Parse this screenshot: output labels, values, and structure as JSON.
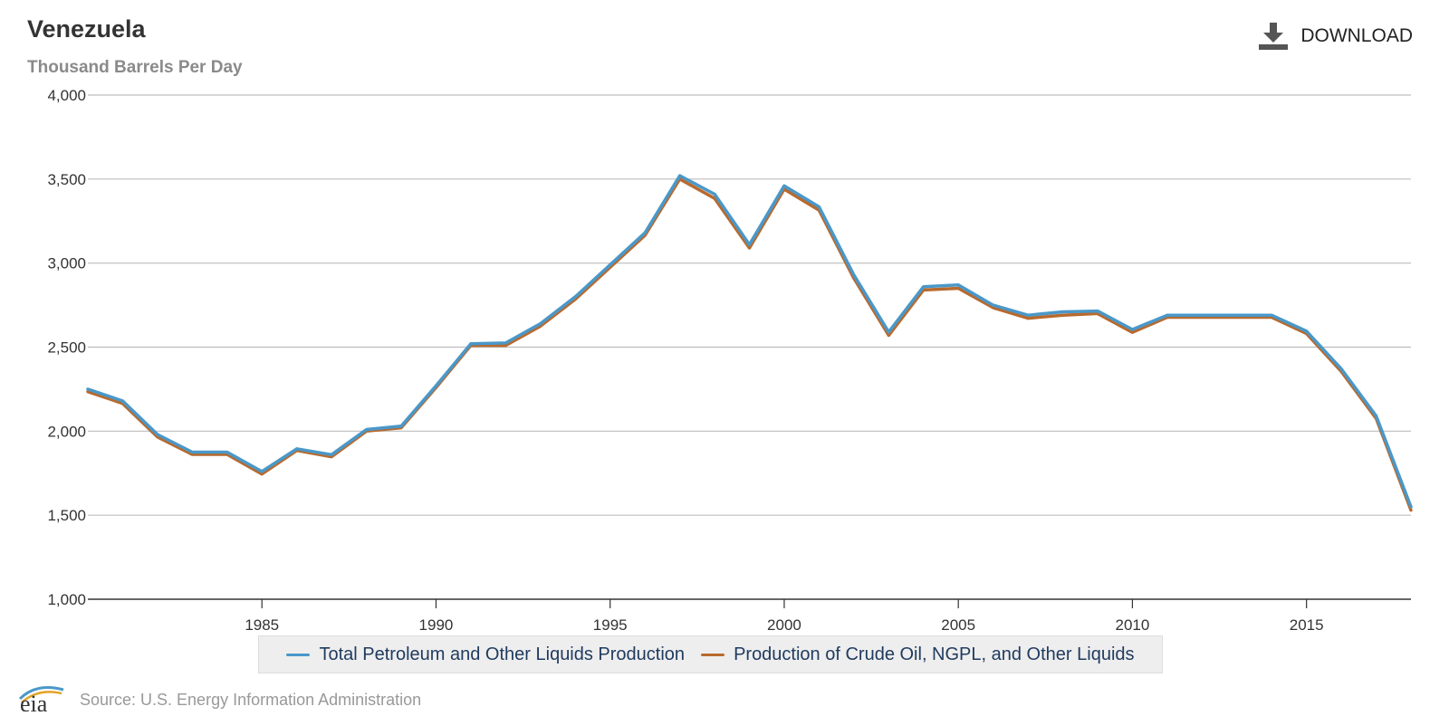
{
  "header": {
    "title": "Venezuela",
    "subtitle": "Thousand Barrels Per Day",
    "download_label": "DOWNLOAD"
  },
  "footer": {
    "logo_text": "eia",
    "source": "Source: U.S. Energy Information Administration"
  },
  "colors": {
    "series_total": "#4a98c9",
    "series_crude": "#b86a2e",
    "grid": "#bdbdbd",
    "axis": "#333333"
  },
  "chart_data": {
    "type": "line",
    "title": "Venezuela",
    "subtitle": "Thousand Barrels Per Day",
    "xlabel": "",
    "ylabel": "",
    "xlim": [
      1980,
      2018
    ],
    "ylim": [
      1000,
      4000
    ],
    "yticks": [
      1000,
      1500,
      2000,
      2500,
      3000,
      3500,
      4000
    ],
    "ytick_labels": [
      "1,000",
      "1,500",
      "2,000",
      "2,500",
      "3,000",
      "3,500",
      "4,000"
    ],
    "xticks": [
      1985,
      1990,
      1995,
      2000,
      2005,
      2010,
      2015
    ],
    "xtick_labels": [
      "1985",
      "1990",
      "1995",
      "2000",
      "2005",
      "2010",
      "2015"
    ],
    "grid": true,
    "legend_position": "bottom",
    "x": [
      1980,
      1981,
      1982,
      1983,
      1984,
      1985,
      1986,
      1987,
      1988,
      1989,
      1990,
      1991,
      1992,
      1993,
      1994,
      1995,
      1996,
      1997,
      1998,
      1999,
      2000,
      2001,
      2002,
      2003,
      2004,
      2005,
      2006,
      2007,
      2008,
      2009,
      2010,
      2011,
      2012,
      2013,
      2014,
      2015,
      2016,
      2017,
      2018
    ],
    "series": [
      {
        "name": "Total Petroleum and Other Liquids Production",
        "color": "#4a98c9",
        "values": [
          2250,
          2180,
          1980,
          1875,
          1875,
          1760,
          1895,
          1860,
          2010,
          2030,
          2270,
          2520,
          2525,
          2640,
          2800,
          2990,
          3180,
          3520,
          3410,
          3110,
          3460,
          3335,
          2930,
          2590,
          2860,
          2870,
          2750,
          2690,
          2710,
          2715,
          2605,
          2690,
          2690,
          2690,
          2690,
          2595,
          2370,
          2090,
          1550
        ]
      },
      {
        "name": "Production of Crude Oil, NGPL, and Other Liquids",
        "color": "#b86a2e",
        "values": [
          2235,
          2165,
          1965,
          1862,
          1862,
          1745,
          1885,
          1848,
          2000,
          2020,
          2260,
          2510,
          2510,
          2625,
          2785,
          2975,
          3165,
          3500,
          3385,
          3090,
          3440,
          3315,
          2910,
          2570,
          2840,
          2850,
          2735,
          2672,
          2690,
          2700,
          2588,
          2678,
          2678,
          2678,
          2678,
          2580,
          2355,
          2075,
          1530
        ]
      }
    ]
  }
}
